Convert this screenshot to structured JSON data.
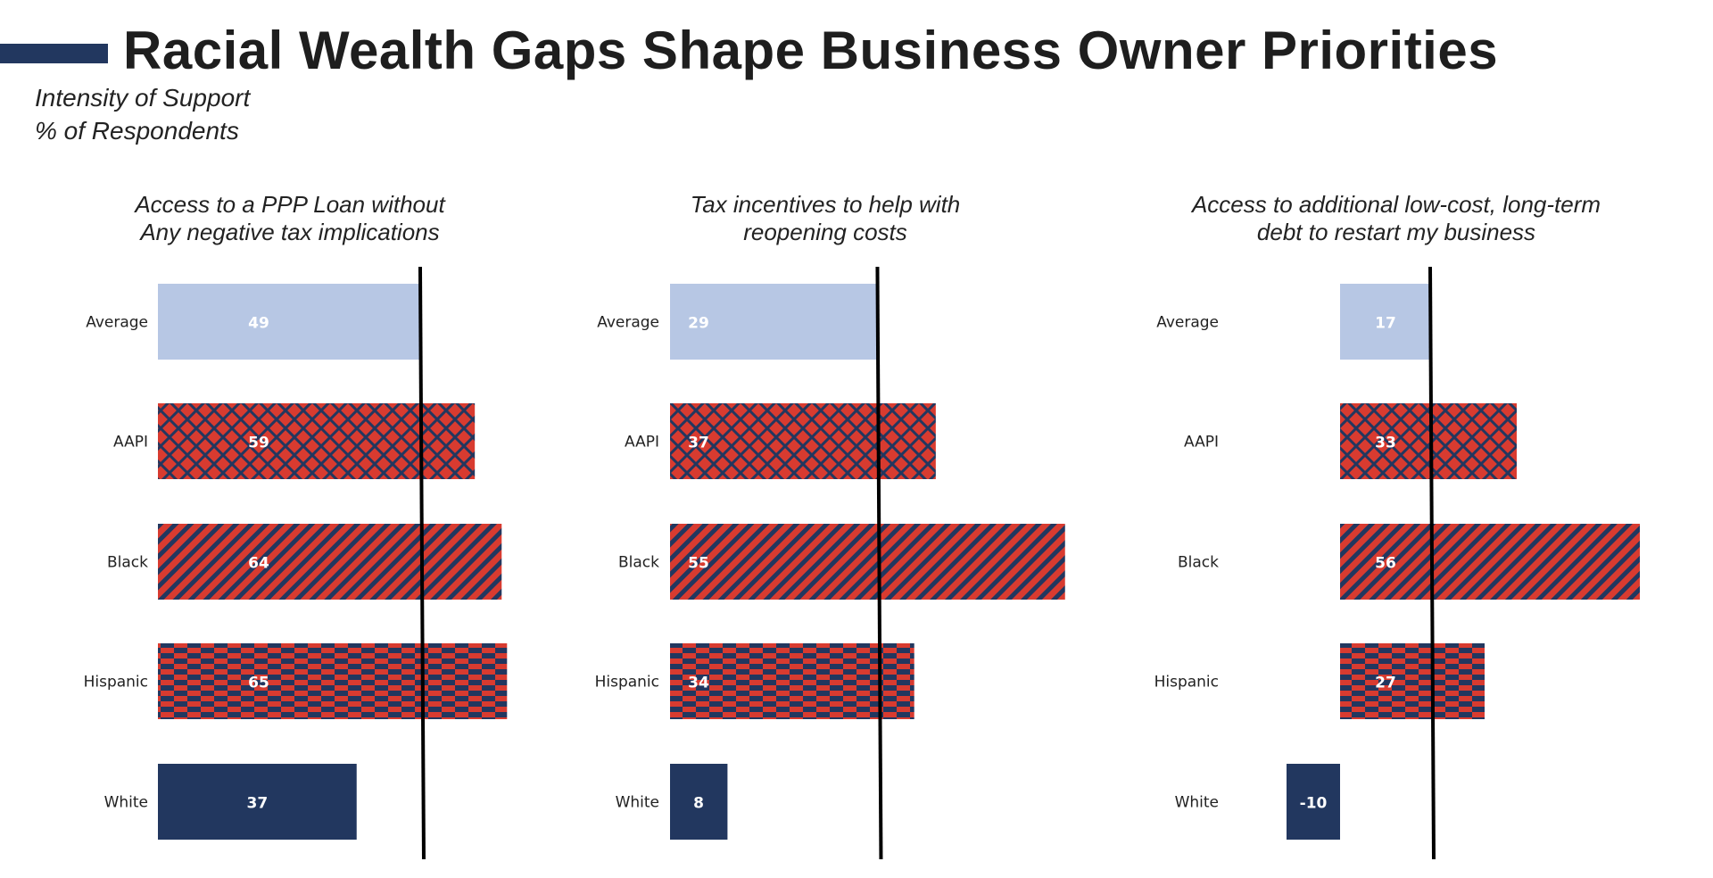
{
  "title": "Racial Wealth Gaps Shape Business Owner Priorities",
  "subtitle_lines": [
    "Intensity of Support",
    "% of Respondents"
  ],
  "colors": {
    "navy": "#22375f",
    "red": "#d83b30",
    "average": "#b7c7e4",
    "reference_line": "#000000"
  },
  "chart_data": [
    {
      "type": "bar",
      "orientation": "horizontal",
      "title_lines": [
        "Access to a PPP Loan without",
        "Any negative tax implications"
      ],
      "categories": [
        "Average",
        "AAPI",
        "Black",
        "Hispanic",
        "White"
      ],
      "values": [
        49,
        59,
        64,
        65,
        37
      ],
      "fills": [
        "solid-light-blue",
        "crosshatch-red-navy",
        "diagonal-stripes-red-navy",
        "checker-red-navy",
        "solid-navy"
      ],
      "reference_line": 49
    },
    {
      "type": "bar",
      "orientation": "horizontal",
      "title_lines": [
        "Tax incentives to help with",
        "reopening costs"
      ],
      "categories": [
        "Average",
        "AAPI",
        "Black",
        "Hispanic",
        "White"
      ],
      "values": [
        29,
        37,
        55,
        34,
        8
      ],
      "fills": [
        "solid-light-blue",
        "crosshatch-red-navy",
        "diagonal-stripes-red-navy",
        "checker-red-navy",
        "solid-navy"
      ],
      "reference_line": 29
    },
    {
      "type": "bar",
      "orientation": "horizontal",
      "title_lines": [
        "Access to additional low-cost, long-term",
        "debt to restart my business"
      ],
      "categories": [
        "Average",
        "AAPI",
        "Black",
        "Hispanic",
        "White"
      ],
      "values": [
        17,
        33,
        56,
        27,
        -10
      ],
      "fills": [
        "solid-light-blue",
        "crosshatch-red-navy",
        "diagonal-stripes-red-navy",
        "checker-red-navy",
        "solid-navy"
      ],
      "reference_line": 17
    }
  ]
}
